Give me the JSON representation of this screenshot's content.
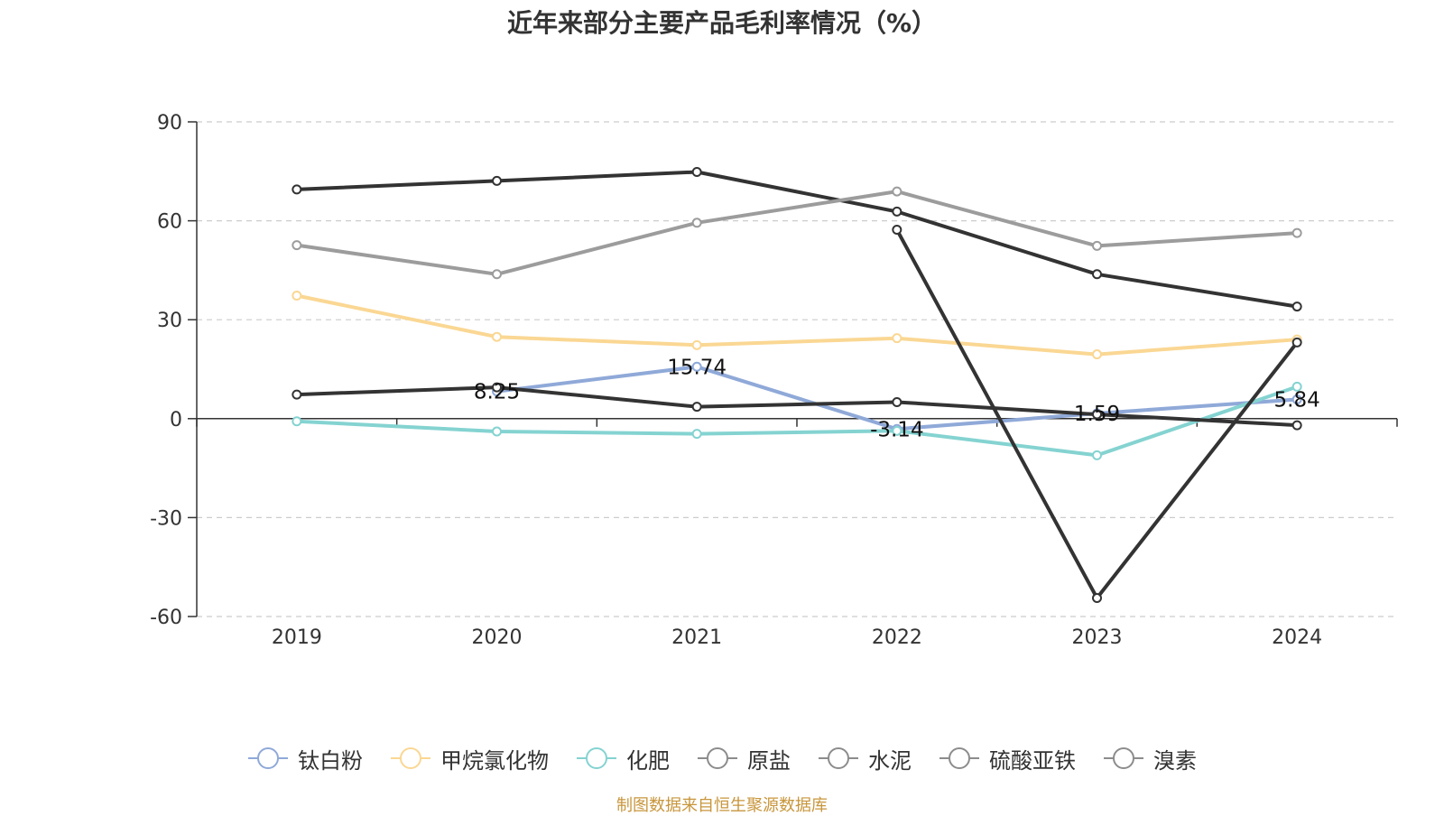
{
  "chart_data": {
    "type": "line",
    "title": "近年来部分主要产品毛利率情况（%）",
    "categories": [
      "2019",
      "2020",
      "2021",
      "2022",
      "2023",
      "2024"
    ],
    "ylim": [
      -60,
      90
    ],
    "yticks": [
      "90",
      "60",
      "30",
      "0",
      "-30",
      "-60"
    ],
    "grid": true,
    "legend_position": "bottom",
    "series": [
      {
        "name": "钛白粉",
        "color": "#8fa9d8",
        "values": [
          null,
          8.25,
          15.74,
          -3.14,
          1.59,
          5.84
        ],
        "labels": [
          null,
          "8.25",
          "15.74",
          "-3.14",
          "1.59",
          "5.84"
        ]
      },
      {
        "name": "甲烷氯化物",
        "color": "#fad793",
        "values": [
          37.3,
          24.8,
          22.3,
          24.4,
          19.5,
          24.0
        ]
      },
      {
        "name": "化肥",
        "color": "#84d3d1",
        "values": [
          -0.8,
          -3.9,
          -4.6,
          -3.7,
          -11.1,
          9.7
        ]
      },
      {
        "name": "原盐",
        "color": "#333333",
        "values": [
          69.5,
          72.1,
          74.8,
          62.8,
          43.8,
          34.0
        ]
      },
      {
        "name": "水泥",
        "color": "#9c9c9c",
        "values": [
          52.6,
          43.8,
          59.4,
          68.9,
          52.4,
          56.3
        ]
      },
      {
        "name": "硫酸亚铁",
        "color": "#333333",
        "values": [
          null,
          null,
          null,
          57.3,
          -54.4,
          23.1
        ]
      },
      {
        "name": "溴素",
        "color": "#333333",
        "values": [
          7.3,
          9.5,
          3.6,
          5.0,
          1.3,
          -2.0
        ]
      }
    ]
  },
  "source": "制图数据来自恒生聚源数据库"
}
